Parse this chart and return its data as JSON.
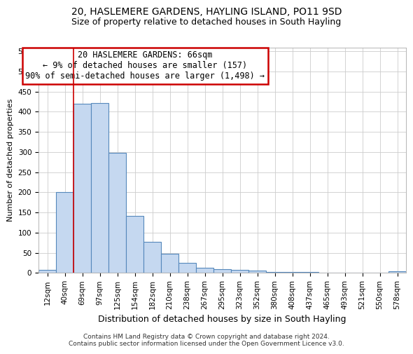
{
  "title": "20, HASLEMERE GARDENS, HAYLING ISLAND, PO11 9SD",
  "subtitle": "Size of property relative to detached houses in South Hayling",
  "xlabel": "Distribution of detached houses by size in South Hayling",
  "ylabel": "Number of detached properties",
  "categories": [
    "12sqm",
    "40sqm",
    "69sqm",
    "97sqm",
    "125sqm",
    "154sqm",
    "182sqm",
    "210sqm",
    "238sqm",
    "267sqm",
    "295sqm",
    "323sqm",
    "352sqm",
    "380sqm",
    "408sqm",
    "437sqm",
    "465sqm",
    "493sqm",
    "521sqm",
    "550sqm",
    "578sqm"
  ],
  "values": [
    8,
    200,
    420,
    422,
    298,
    142,
    77,
    47,
    25,
    12,
    10,
    7,
    5,
    3,
    2,
    2,
    1,
    1,
    1,
    0,
    4
  ],
  "bar_color": "#c5d8f0",
  "bar_edge_color": "#5588bb",
  "grid_color": "#cccccc",
  "background_color": "#ffffff",
  "red_line_index": 2,
  "annotation_line1": "20 HASLEMERE GARDENS: 66sqm",
  "annotation_line2": "← 9% of detached houses are smaller (157)",
  "annotation_line3": "90% of semi-detached houses are larger (1,498) →",
  "annotation_box_color": "#ffffff",
  "annotation_border_color": "#cc0000",
  "ylim": [
    0,
    560
  ],
  "yticks": [
    0,
    50,
    100,
    150,
    200,
    250,
    300,
    350,
    400,
    450,
    500,
    550
  ],
  "footer": "Contains HM Land Registry data © Crown copyright and database right 2024.\nContains public sector information licensed under the Open Government Licence v3.0.",
  "title_fontsize": 10,
  "subtitle_fontsize": 9,
  "xlabel_fontsize": 9,
  "ylabel_fontsize": 8,
  "tick_fontsize": 7.5,
  "annotation_fontsize": 8.5,
  "footer_fontsize": 6.5
}
